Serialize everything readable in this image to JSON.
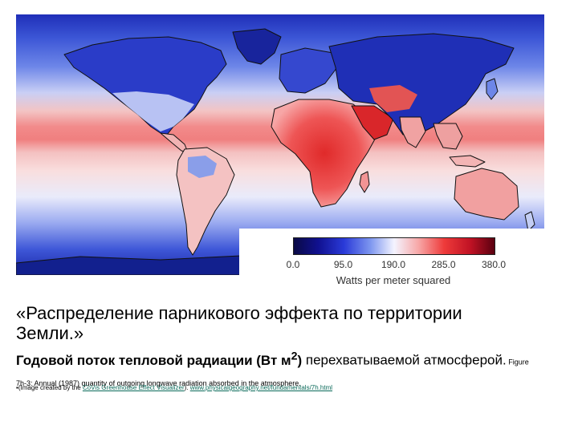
{
  "map": {
    "colors": {
      "ocean_high": "#f28b8b",
      "ocean_mid": "#f3c4c4",
      "ocean_low": "#6d86e8",
      "ocean_polar": "#1f2fb8",
      "land_desert": "#e53a3a",
      "land_boreal": "#1a26a8",
      "land_tropical": "#f2a7a7",
      "coastline": "#111111"
    }
  },
  "scale": {
    "ticks": [
      "0.0",
      "95.0",
      "190.0",
      "285.0",
      "380.0"
    ],
    "tick_values": [
      0,
      95,
      190,
      285,
      380
    ],
    "range": [
      0,
      380
    ],
    "units": "Watts per meter squared"
  },
  "caption": {
    "title": "«Распределение парникового эффекта по территории Земли.»",
    "subtitle_bold_a": "Годовой поток тепловой радиации (Вт м",
    "subtitle_sup": "2",
    "subtitle_bold_b": ")",
    "subtitle_rest": " перехватываемой атмосферой.",
    "figure_note": " Figure 7h-3: Annual (1987) quantity of outgoing longwave radiation absorbed in the atmosphere."
  },
  "credit": {
    "prefix": "▪(Image created by the ",
    "link1": "CoVis Greenhouse Effect Visualizer",
    "middle": "). ",
    "link2": "www.physicalgeography.net/fundamentals/7h.html"
  }
}
